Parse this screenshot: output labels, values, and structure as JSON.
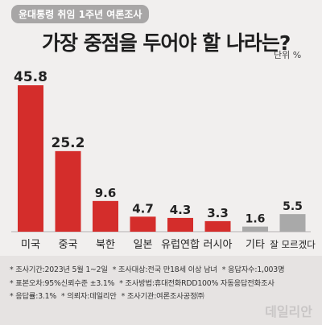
{
  "header": {
    "badge": "윤대통령 취임 1주년 여론조사",
    "title": "가장 중점을 두어야 할 나라는?",
    "unit": "단위 %"
  },
  "chart_data": {
    "type": "bar",
    "title": "가장 중점을 두어야 할 나라는?",
    "unit": "단위 %",
    "categories": [
      "미국",
      "중국",
      "북한",
      "일본",
      "유럽연합",
      "러시아",
      "기타",
      "잘 모르겠다"
    ],
    "values": [
      45.8,
      25.2,
      9.6,
      4.7,
      4.3,
      3.3,
      1.6,
      5.5
    ],
    "value_labels": [
      "45.8",
      "25.2",
      "9.6",
      "4.7",
      "4.3",
      "3.3",
      "1.6",
      "5.5"
    ],
    "ylim": [
      0,
      45.8
    ],
    "grid": false,
    "colors": {
      "main": "#d42d2b",
      "other": "#a9a9a9"
    },
    "bar_colors": [
      "main",
      "main",
      "main",
      "main",
      "main",
      "main",
      "other",
      "other"
    ]
  },
  "notes": {
    "lines": [
      [
        "조사기간:2023년 5월 1~2일",
        "조사대상:전국 만18세 이상 남녀",
        "응답자수:1,003명"
      ],
      [
        "표본오차:95%신뢰수준 ±3.1%",
        "조사방법:휴대전화RDD100% 자동응답전화조사"
      ],
      [
        "응답률:3.1%",
        "의뢰자:데일리안",
        "조사기관:여론조사공정㈜"
      ]
    ]
  },
  "watermark": "데일리안"
}
